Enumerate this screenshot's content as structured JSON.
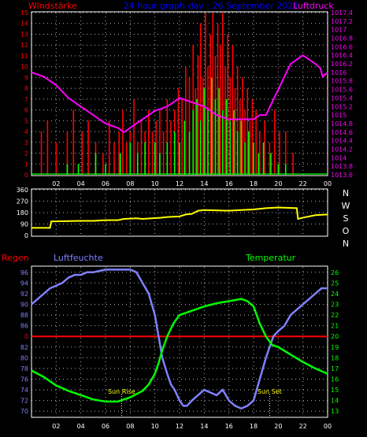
{
  "header": {
    "left_label": "Windstärke",
    "title": "24 hour graph day : 26 September 2021",
    "right_label": "Luftdruck"
  },
  "middle": {
    "direction_labels": [
      "N",
      "W",
      "S",
      "O",
      "N"
    ]
  },
  "bottom": {
    "rain_label": "Regen",
    "humidity_label": "Luftfeuchte",
    "temperature_label": "Temperatur",
    "sunrise_label": "Sun Rise",
    "sunset_label": "Sun Set"
  },
  "colors": {
    "wind_avg": "#00ff00",
    "wind_gust": "#ff0000",
    "pressure": "#ff00ff",
    "direction": "#ffff00",
    "humidity": "#8080ff",
    "temperature": "#00ff00",
    "rain": "#ff0000",
    "grid": "#ffffff",
    "axis_left": "#ff0000",
    "axis_right": "#ff00ff",
    "axis_bottom_right": "#00ff00"
  },
  "chart_data": [
    {
      "type": "bar",
      "name_key": "wind_pressure",
      "x_ticks": [
        "02",
        "04",
        "06",
        "08",
        "10",
        "12",
        "14",
        "16",
        "18",
        "20",
        "22",
        "00"
      ],
      "xlim": [
        0,
        24
      ],
      "y_left_ticks": [
        "0",
        "1",
        "2",
        "3",
        "4",
        "5",
        "6",
        "7",
        "8",
        "9",
        "10",
        "11",
        "12",
        "13",
        "14",
        "15"
      ],
      "ylim_left": [
        0,
        15
      ],
      "y_right_ticks": [
        "1013.6",
        "1013.8",
        "1014",
        "1014.2",
        "1014.4",
        "1014.6",
        "1014.8",
        "1015",
        "1015.2",
        "1015.4",
        "1015.6",
        "1015.8",
        "1016",
        "1016.2",
        "1016.4",
        "1016.6",
        "1016.8",
        "1017",
        "1017.2",
        "1017.4"
      ],
      "ylim_right": [
        1013.6,
        1017.4
      ],
      "gust_x": [
        0.8,
        1.3,
        2.0,
        2.9,
        3.4,
        4.1,
        4.6,
        5.2,
        5.8,
        6.3,
        6.7,
        7.1,
        7.4,
        7.7,
        8.0,
        8.3,
        8.6,
        8.9,
        9.2,
        9.5,
        9.8,
        10.1,
        10.4,
        10.7,
        11.0,
        11.3,
        11.6,
        11.9,
        12.2,
        12.5,
        12.8,
        13.1,
        13.3,
        13.5,
        13.7,
        13.9,
        14.1,
        14.3,
        14.5,
        14.7,
        14.9,
        15.1,
        15.3,
        15.5,
        15.7,
        15.9,
        16.1,
        16.3,
        16.5,
        16.7,
        16.9,
        17.1,
        17.3,
        17.5,
        17.7,
        17.9,
        18.2,
        18.5,
        18.9,
        19.3,
        19.7,
        20.1,
        20.6,
        21.2
      ],
      "gust": [
        4,
        5,
        3,
        4,
        6,
        4,
        5,
        3,
        2,
        5,
        3,
        4,
        6,
        3,
        4,
        7,
        3,
        5,
        4,
        6,
        4,
        5,
        6,
        4,
        7,
        5,
        6,
        8,
        7,
        10,
        9,
        12,
        8,
        11,
        14,
        9,
        15,
        10,
        13,
        15,
        11,
        14,
        12,
        15,
        10,
        13,
        9,
        12,
        8,
        10,
        7,
        9,
        6,
        8,
        5,
        7,
        6,
        4,
        5,
        3,
        6,
        4,
        4,
        2
      ],
      "avg_x": [
        2.9,
        3.8,
        5.2,
        6.0,
        7.2,
        8.0,
        8.6,
        9.2,
        10.0,
        10.4,
        11.0,
        11.6,
        12.0,
        12.4,
        12.8,
        13.1,
        13.4,
        13.7,
        14.0,
        14.3,
        14.6,
        14.9,
        15.2,
        15.5,
        15.8,
        16.1,
        16.4,
        16.7,
        17.0,
        17.3,
        17.6,
        18.0,
        18.4,
        18.8,
        19.4,
        20.0,
        20.6
      ],
      "avg": [
        1,
        1,
        2,
        1,
        2,
        3,
        2,
        3,
        3,
        2,
        3,
        4,
        3,
        5,
        4,
        6,
        7,
        5,
        8,
        6,
        9,
        7,
        8,
        6,
        7,
        5,
        6,
        4,
        5,
        3,
        4,
        3,
        2,
        3,
        2,
        1,
        1
      ],
      "pressure_x": [
        0,
        1,
        2,
        3,
        4,
        5,
        6,
        7,
        7.5,
        8,
        9,
        10,
        11,
        12,
        13,
        14,
        15,
        16,
        17,
        18,
        18.5,
        19,
        20,
        21,
        22,
        23,
        23.4,
        23.6,
        24
      ],
      "pressure": [
        1016.0,
        1015.9,
        1015.7,
        1015.4,
        1015.2,
        1015.0,
        1014.8,
        1014.7,
        1014.6,
        1014.7,
        1014.9,
        1015.1,
        1015.2,
        1015.4,
        1015.3,
        1015.2,
        1015.0,
        1014.9,
        1014.9,
        1014.9,
        1015.0,
        1015.0,
        1015.6,
        1016.2,
        1016.4,
        1016.2,
        1016.1,
        1015.9,
        1016.0
      ]
    },
    {
      "type": "line",
      "name_key": "wind_direction",
      "xlim": [
        0,
        24
      ],
      "y_ticks": [
        "0",
        "90",
        "180",
        "270",
        "360"
      ],
      "ylim": [
        0,
        360
      ],
      "x": [
        0,
        1.5,
        1.6,
        4.0,
        5.0,
        6.0,
        7.0,
        7.5,
        8.5,
        9.0,
        10.5,
        11.0,
        12.0,
        12.5,
        13.0,
        13.5,
        14.0,
        16.0,
        17.0,
        18.0,
        19.0,
        20.0,
        21.5,
        21.6,
        22.0,
        22.5,
        23.0,
        24.0
      ],
      "values": [
        60,
        60,
        110,
        115,
        115,
        120,
        120,
        130,
        135,
        130,
        140,
        145,
        150,
        165,
        170,
        195,
        200,
        195,
        200,
        205,
        215,
        220,
        215,
        130,
        140,
        150,
        160,
        165
      ]
    },
    {
      "type": "line",
      "name_key": "humidity_temperature",
      "x_ticks": [
        "02",
        "04",
        "06",
        "08",
        "10",
        "12",
        "14",
        "16",
        "18",
        "20",
        "22",
        "00"
      ],
      "xlim": [
        0,
        24
      ],
      "y_left_ticks": [
        "70",
        "72",
        "74",
        "76",
        "78",
        "80",
        "82",
        "84",
        "86",
        "88",
        "90",
        "92",
        "94",
        "96"
      ],
      "ylim_left": [
        69,
        97
      ],
      "y_right_ticks": [
        "13",
        "14",
        "15",
        "16",
        "17",
        "18",
        "19",
        "20",
        "21",
        "22",
        "23",
        "24",
        "25",
        "26"
      ],
      "ylim_right": [
        12.5,
        26.5
      ],
      "rain_tick": "0",
      "rain_level": 84,
      "sunrise_x": 7.3,
      "sunset_x": 19.3,
      "humidity_x": [
        0,
        0.5,
        1,
        1.5,
        2,
        2.5,
        3,
        3.5,
        4,
        4.5,
        5,
        6,
        7,
        8,
        8.5,
        9,
        9.5,
        10,
        10.3,
        10.6,
        11,
        11.3,
        11.6,
        12,
        12.3,
        12.6,
        13,
        13.5,
        14,
        14.5,
        15,
        15.5,
        16,
        16.5,
        17,
        17.5,
        18,
        18.5,
        19,
        19.3,
        19.6,
        20,
        20.5,
        21,
        21.5,
        22,
        22.5,
        23,
        23.5,
        24
      ],
      "humidity": [
        90,
        91,
        92,
        93,
        93.5,
        94,
        95,
        95.5,
        95.5,
        96,
        96,
        96.5,
        96.5,
        96.5,
        96,
        94,
        92,
        88,
        84,
        80,
        77,
        75,
        74,
        72,
        71,
        71,
        72,
        73,
        74,
        73.5,
        73,
        74,
        72,
        71,
        70.5,
        71,
        72,
        76,
        80,
        82,
        84,
        85,
        86,
        88,
        89,
        90,
        91,
        92,
        93,
        93
      ],
      "temperature_x": [
        0,
        1,
        2,
        3,
        4,
        5,
        6,
        7,
        8,
        9,
        9.5,
        10,
        10.3,
        10.6,
        11,
        11.5,
        12,
        13,
        14,
        15,
        16,
        17,
        17.5,
        18,
        18.5,
        19,
        19.5,
        20,
        21,
        22,
        23,
        24
      ],
      "temperature": [
        16.8,
        16.2,
        15.4,
        14.9,
        14.5,
        14.1,
        13.9,
        13.9,
        14.3,
        14.9,
        15.5,
        16.5,
        17.5,
        18.7,
        20.0,
        21.2,
        22.0,
        22.4,
        22.8,
        23.1,
        23.3,
        23.5,
        23.3,
        22.8,
        21.2,
        20.0,
        19.2,
        19.0,
        18.3,
        17.6,
        17.0,
        16.5
      ]
    }
  ]
}
